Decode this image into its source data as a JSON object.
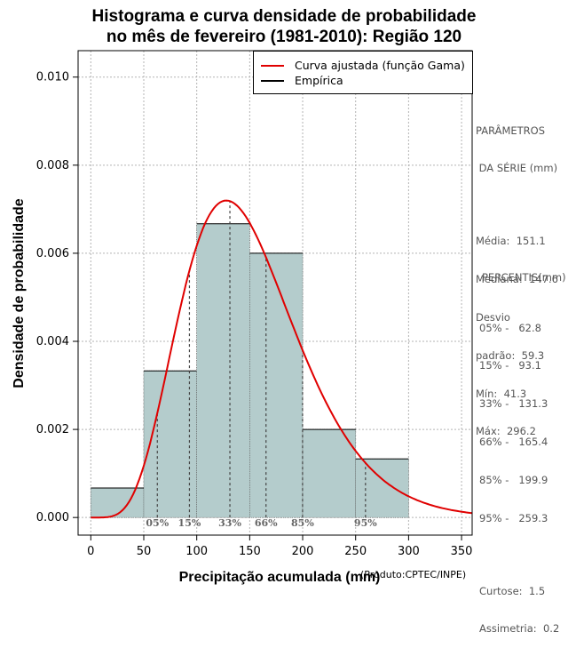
{
  "chart_data": {
    "type": "histogram",
    "title_line1": "Histograma e curva densidade de probabilidade",
    "title_line2": "no mês de fevereiro (1981-2010): Região 120",
    "xlabel": "Precipitação acumulada (mm)",
    "ylabel": "Densidade de probabilidade",
    "xlim": [
      -12,
      360
    ],
    "ylim": [
      -0.0004,
      0.0106
    ],
    "x_ticks": [
      0,
      50,
      100,
      150,
      200,
      250,
      300,
      350
    ],
    "y_ticks": [
      0.0,
      0.002,
      0.004,
      0.006,
      0.008,
      0.01
    ],
    "y_tick_labels": [
      "0.000",
      "0.002",
      "0.004",
      "0.006",
      "0.008",
      "0.010"
    ],
    "bins": [
      {
        "start": 0,
        "end": 50,
        "density": 0.00067
      },
      {
        "start": 50,
        "end": 100,
        "density": 0.00333
      },
      {
        "start": 100,
        "end": 150,
        "density": 0.00667
      },
      {
        "start": 150,
        "end": 200,
        "density": 0.006
      },
      {
        "start": 200,
        "end": 250,
        "density": 0.002
      },
      {
        "start": 250,
        "end": 300,
        "density": 0.00133
      }
    ],
    "gamma_fit": {
      "shape": 6.49,
      "scale": 23.3,
      "name": "Curva ajustada (função Gama)"
    },
    "percentile_lines": [
      {
        "label": "05%",
        "value": 62.8
      },
      {
        "label": "15%",
        "value": 93.1
      },
      {
        "label": "33%",
        "value": 131.3
      },
      {
        "label": "66%",
        "value": 165.4
      },
      {
        "label": "85%",
        "value": 199.9
      },
      {
        "label": "95%",
        "value": 259.3
      }
    ],
    "legend": [
      {
        "label": "Curva ajustada (função Gama)",
        "color": "#e00000"
      },
      {
        "label": "Empírica",
        "color": "#000000"
      }
    ],
    "colors": {
      "bar_fill": "#b4cccc",
      "curve": "#e00000",
      "grid": "#b3b3b3"
    }
  },
  "side_panel": {
    "params_title": [
      "PARÂMETROS",
      " DA SÉRIE (mm)"
    ],
    "params": [
      "Média:  151.1",
      "Mediana:  147.6",
      "Desvio",
      "padrão:  59.3",
      "Mín:  41.3",
      "Máx:  296.2"
    ],
    "percentiles_title": "PERCENTIS(mm)",
    "percentiles": [
      "05% -   62.8",
      "15% -   93.1",
      "33% -   131.3",
      "66% -   165.4",
      "85% -   199.9",
      "95% -   259.3"
    ],
    "shape": [
      "Curtose:  1.5",
      "Assimetria:  0.2"
    ]
  },
  "credit": "(Produto:CPTEC/INPE)"
}
